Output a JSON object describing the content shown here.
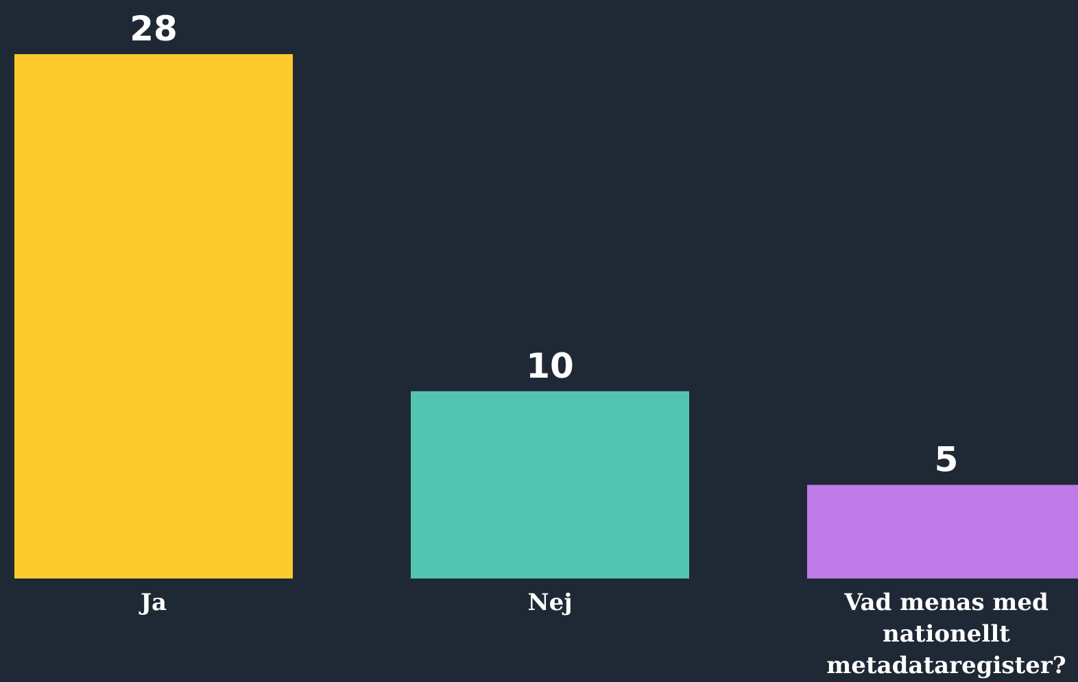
{
  "chart_data": {
    "type": "bar",
    "categories": [
      "Ja",
      "Nej",
      "Vad menas med nationellt metadataregister?"
    ],
    "category_label_lines": [
      [
        "Ja"
      ],
      [
        "Nej"
      ],
      [
        "Vad menas med",
        "nationellt",
        "metadataregister?"
      ]
    ],
    "values": [
      28,
      10,
      5
    ],
    "colors": [
      "#fecb2e",
      "#53c4b2",
      "#bf7be8"
    ],
    "background": "#1f2935",
    "label_color": "#ffffff",
    "grid": false,
    "legend": "none",
    "title": "",
    "xlabel": "",
    "ylabel": "",
    "ylim": [
      0,
      28
    ]
  }
}
